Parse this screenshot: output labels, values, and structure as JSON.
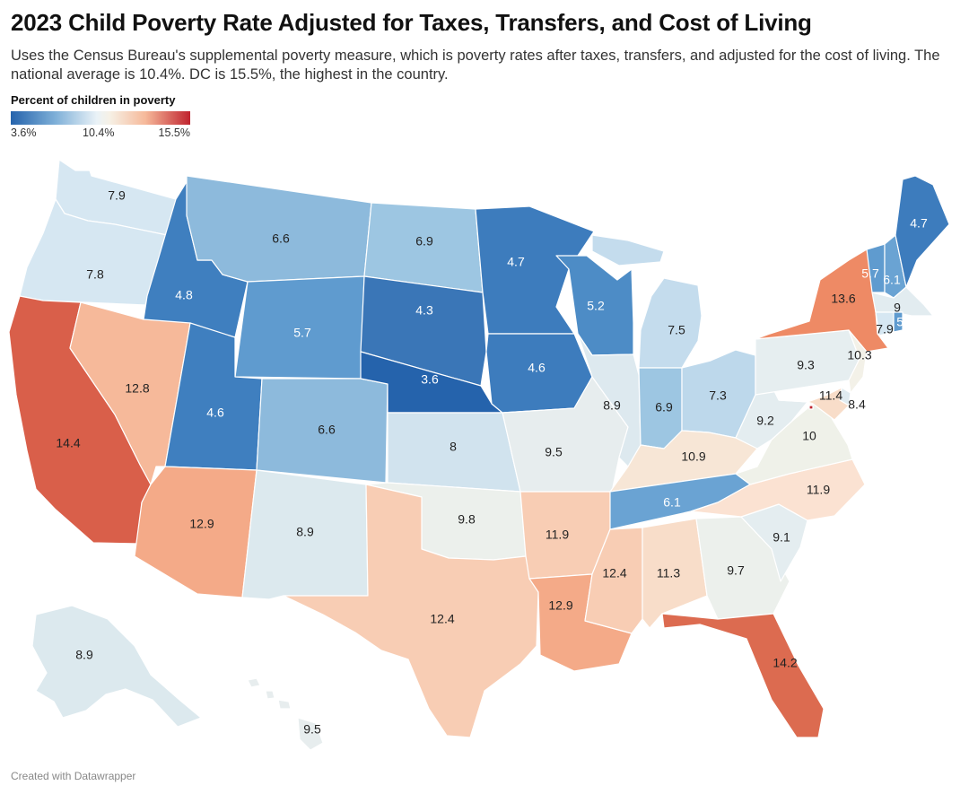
{
  "title": "2023 Child Poverty Rate Adjusted for Taxes, Transfers, and Cost of Living",
  "subtitle": "Uses the Census Bureau's supplemental poverty measure, which is poverty rates after taxes, transfers, and adjusted for the cost of living. The national average is 10.4%. DC is 15.5%, the highest in the country.",
  "legend": {
    "title": "Percent of children in poverty",
    "min_label": "3.6%",
    "mid_label": "10.4%",
    "max_label": "15.5%"
  },
  "footer": "Created with Datawrapper",
  "chart_data": {
    "type": "choropleth",
    "unit": "percent of children in poverty",
    "scale": {
      "min": 3.6,
      "mid": 10.4,
      "max": 15.5
    },
    "states": [
      {
        "id": "WA",
        "value": "7.9",
        "color": "#d6e7f2"
      },
      {
        "id": "OR",
        "value": "7.8",
        "color": "#d6e7f2"
      },
      {
        "id": "CA",
        "value": "14.4",
        "color": "#d95f4a"
      },
      {
        "id": "ID",
        "value": "4.8",
        "color": "#3f7fbf"
      },
      {
        "id": "NV",
        "value": "12.8",
        "color": "#f6b99a"
      },
      {
        "id": "MT",
        "value": "6.6",
        "color": "#8dbadc"
      },
      {
        "id": "WY",
        "value": "5.7",
        "color": "#5f9bcf"
      },
      {
        "id": "UT",
        "value": "4.6",
        "color": "#3f7fbf"
      },
      {
        "id": "AZ",
        "value": "12.9",
        "color": "#f4aa88"
      },
      {
        "id": "CO",
        "value": "6.6",
        "color": "#8dbadc"
      },
      {
        "id": "NM",
        "value": "8.9",
        "color": "#dce9ee"
      },
      {
        "id": "ND",
        "value": "6.9",
        "color": "#9dc6e2"
      },
      {
        "id": "SD",
        "value": "4.3",
        "color": "#3a76b7"
      },
      {
        "id": "NE",
        "value": "3.6",
        "color": "#2563ac"
      },
      {
        "id": "KS",
        "value": "8",
        "color": "#d1e3ee"
      },
      {
        "id": "OK",
        "value": "9.8",
        "color": "#ecf0ec"
      },
      {
        "id": "TX",
        "value": "12.4",
        "color": "#f8cdb4"
      },
      {
        "id": "MN",
        "value": "4.7",
        "color": "#3d7cbd"
      },
      {
        "id": "IA",
        "value": "4.6",
        "color": "#3d7cbd"
      },
      {
        "id": "MO",
        "value": "9.5",
        "color": "#e7edee"
      },
      {
        "id": "AR",
        "value": "11.9",
        "color": "#f8cdb4"
      },
      {
        "id": "LA",
        "value": "12.9",
        "color": "#f4aa88"
      },
      {
        "id": "WI",
        "value": "5.2",
        "color": "#4d8cc6"
      },
      {
        "id": "IL",
        "value": "8.9",
        "color": "#dde9ef"
      },
      {
        "id": "MI",
        "value": "7.5",
        "color": "#c4dced"
      },
      {
        "id": "IN",
        "value": "6.9",
        "color": "#9dc6e2"
      },
      {
        "id": "OH",
        "value": "7.3",
        "color": "#bdd8eb"
      },
      {
        "id": "KY",
        "value": "10.9",
        "color": "#f7e6d6"
      },
      {
        "id": "TN",
        "value": "6.1",
        "color": "#6aa3d3"
      },
      {
        "id": "MS",
        "value": "12.4",
        "color": "#f8cdb4"
      },
      {
        "id": "AL",
        "value": "11.3",
        "color": "#f8ddc9"
      },
      {
        "id": "GA",
        "value": "9.7",
        "color": "#ecf0ec"
      },
      {
        "id": "FL",
        "value": "14.2",
        "color": "#dc6b50"
      },
      {
        "id": "SC",
        "value": "9.1",
        "color": "#e4edf0"
      },
      {
        "id": "NC",
        "value": "11.9",
        "color": "#fbe2d2"
      },
      {
        "id": "VA",
        "value": "10",
        "color": "#eff1e9"
      },
      {
        "id": "WV",
        "value": "9.2",
        "color": "#e4edf0"
      },
      {
        "id": "PA",
        "value": "9.3",
        "color": "#e6eef0"
      },
      {
        "id": "NY",
        "value": "13.6",
        "color": "#ee8a65"
      },
      {
        "id": "NJ",
        "value": "10.3",
        "color": "#f3f1e8"
      },
      {
        "id": "DE",
        "value": "8.4",
        "color": "#e0ebf0"
      },
      {
        "id": "MD",
        "value": "11.4",
        "color": "#f8ddc9"
      },
      {
        "id": "DC",
        "value": "15.5",
        "color": "#c0232e"
      },
      {
        "id": "VT",
        "value": "5.7",
        "color": "#5f9bcf"
      },
      {
        "id": "NH",
        "value": "6.1",
        "color": "#6aa3d3"
      },
      {
        "id": "ME",
        "value": "4.7",
        "color": "#3d7cbd"
      },
      {
        "id": "MA",
        "value": "9",
        "color": "#e2ecf0"
      },
      {
        "id": "CT",
        "value": "7.9",
        "color": "#d6e7f2"
      },
      {
        "id": "RI",
        "value": "5.7",
        "color": "#5f9bcf"
      },
      {
        "id": "AK",
        "value": "8.9",
        "color": "#dce9ee"
      },
      {
        "id": "HI",
        "value": "9.5",
        "color": "#e7edee"
      }
    ]
  }
}
